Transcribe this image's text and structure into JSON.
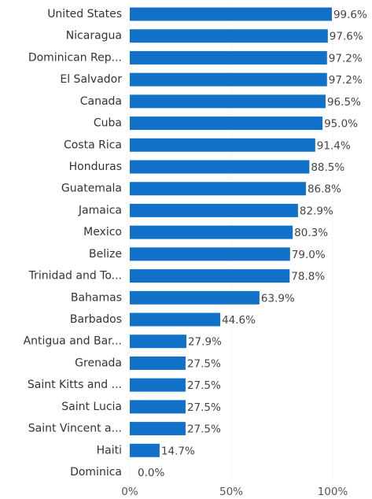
{
  "chart_data": {
    "type": "bar",
    "orientation": "horizontal",
    "color": "#1170c8",
    "categories": [
      "United States",
      "Nicaragua",
      "Dominican Rep...",
      "El Salvador",
      "Canada",
      "Cuba",
      "Costa Rica",
      "Honduras",
      "Guatemala",
      "Jamaica",
      "Mexico",
      "Belize",
      "Trinidad and To...",
      "Bahamas",
      "Barbados",
      "Antigua and Bar...",
      "Grenada",
      "Saint Kitts and ...",
      "Saint Lucia",
      "Saint Vincent a...",
      "Haiti",
      "Dominica"
    ],
    "values": [
      99.6,
      97.6,
      97.2,
      97.2,
      96.5,
      95.0,
      91.4,
      88.5,
      86.8,
      82.9,
      80.3,
      79.0,
      78.8,
      63.9,
      44.6,
      27.9,
      27.5,
      27.5,
      27.5,
      27.5,
      14.7,
      0.0
    ],
    "value_labels": [
      "99.6%",
      "97.6%",
      "97.2%",
      "97.2%",
      "96.5%",
      "95.0%",
      "91.4%",
      "88.5%",
      "86.8%",
      "82.9%",
      "80.3%",
      "79.0%",
      "78.8%",
      "63.9%",
      "44.6%",
      "27.9%",
      "27.5%",
      "27.5%",
      "27.5%",
      "27.5%",
      "14.7%",
      "0.0%"
    ],
    "xlim": [
      0,
      100
    ],
    "xticks": [
      {
        "value": 0,
        "label": "0%"
      },
      {
        "value": 50,
        "label": "50%"
      },
      {
        "value": 100,
        "label": "100%"
      }
    ],
    "grid": true
  }
}
